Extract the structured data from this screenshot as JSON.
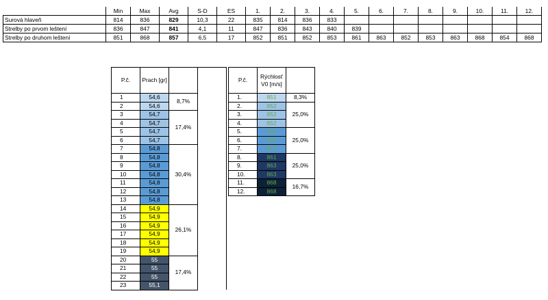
{
  "summary": {
    "headers": [
      "",
      "Min",
      "Max",
      "Avg",
      "S-D",
      "ES",
      "1.",
      "2.",
      "3.",
      "4.",
      "5.",
      "6.",
      "7.",
      "8.",
      "9.",
      "10.",
      "11.",
      "12."
    ],
    "rows": [
      {
        "label": "Surová hlaveň",
        "cells": [
          "814",
          "836",
          "829",
          "10,3",
          "22",
          "835",
          "814",
          "836",
          "833",
          "",
          "",
          "",
          "",
          "",
          "",
          "",
          ""
        ]
      },
      {
        "label": "Strelby po prvom leštení",
        "cells": [
          "836",
          "847",
          "841",
          "4,1",
          "11",
          "847",
          "836",
          "843",
          "840",
          "839",
          "",
          "",
          "",
          "",
          "",
          "",
          ""
        ]
      },
      {
        "label": "Strelby po druhom leštení",
        "cells": [
          "851",
          "868",
          "857",
          "6,5",
          "17",
          "852",
          "851",
          "852",
          "853",
          "861",
          "863",
          "852",
          "853",
          "863",
          "868",
          "854",
          "868"
        ]
      }
    ]
  },
  "prach": {
    "header_num": "P.č.",
    "header_val": "Prach [gr]",
    "rows": [
      {
        "n": "1",
        "v": "54,6",
        "color": "#bdd7ee"
      },
      {
        "n": "2",
        "v": "54,6",
        "color": "#bdd7ee"
      },
      {
        "n": "3",
        "v": "54,7",
        "color": "#9dc3e6"
      },
      {
        "n": "4",
        "v": "54,7",
        "color": "#9dc3e6"
      },
      {
        "n": "5",
        "v": "54,7",
        "color": "#9dc3e6"
      },
      {
        "n": "6",
        "v": "54,7",
        "color": "#9dc3e6"
      },
      {
        "n": "7",
        "v": "54,8",
        "color": "#5b9bd5"
      },
      {
        "n": "8",
        "v": "54,8",
        "color": "#5b9bd5"
      },
      {
        "n": "9",
        "v": "54,8",
        "color": "#5b9bd5"
      },
      {
        "n": "10",
        "v": "54,8",
        "color": "#5b9bd5"
      },
      {
        "n": "11",
        "v": "54,8",
        "color": "#5b9bd5"
      },
      {
        "n": "12",
        "v": "54,8",
        "color": "#5b9bd5"
      },
      {
        "n": "13",
        "v": "54,8",
        "color": "#5b9bd5"
      },
      {
        "n": "14",
        "v": "54,9",
        "color": "#ffff00"
      },
      {
        "n": "15",
        "v": "54,9",
        "color": "#ffff00"
      },
      {
        "n": "16",
        "v": "54,9",
        "color": "#ffff00"
      },
      {
        "n": "17",
        "v": "54,9",
        "color": "#ffff00"
      },
      {
        "n": "18",
        "v": "54,9",
        "color": "#ffff00"
      },
      {
        "n": "19",
        "v": "54,9",
        "color": "#ffff00"
      },
      {
        "n": "20",
        "v": "55",
        "color": "#44546a"
      },
      {
        "n": "21",
        "v": "55",
        "color": "#44546a"
      },
      {
        "n": "22",
        "v": "55",
        "color": "#44546a"
      },
      {
        "n": "23",
        "v": "55,1",
        "color": "#44546a"
      }
    ],
    "percent_groups": [
      {
        "label": "8,7%",
        "span": 2
      },
      {
        "label": "17,4%",
        "span": 4
      },
      {
        "label": "30,4%",
        "span": 7
      },
      {
        "label": "26,1%",
        "span": 6
      },
      {
        "label": "17,4%",
        "span": 4
      }
    ]
  },
  "rychlost": {
    "header_num": "P.č.",
    "header_val": "Rýchlosť V0 [m/s]",
    "rows": [
      {
        "n": "1.",
        "v": "851",
        "color": "#bdd7ee"
      },
      {
        "n": "2.",
        "v": "852",
        "color": "#9dc3e6"
      },
      {
        "n": "3.",
        "v": "852",
        "color": "#9dc3e6"
      },
      {
        "n": "4.",
        "v": "852",
        "color": "#9dc3e6"
      },
      {
        "n": "5.",
        "v": "853",
        "color": "#5b9bd5"
      },
      {
        "n": "6.",
        "v": "853",
        "color": "#5b9bd5"
      },
      {
        "n": "7.",
        "v": "854",
        "color": "#5b9bd5"
      },
      {
        "n": "8.",
        "v": "861",
        "color": "#1f3864"
      },
      {
        "n": "9.",
        "v": "863",
        "color": "#1f3864"
      },
      {
        "n": "10.",
        "v": "863",
        "color": "#1f3864"
      },
      {
        "n": "11.",
        "v": "868",
        "color": "#0d2137"
      },
      {
        "n": "12.",
        "v": "868",
        "color": "#0d2137"
      }
    ],
    "percent_groups": [
      {
        "label": "8,3%",
        "span": 1
      },
      {
        "label": "25,0%",
        "span": 3
      },
      {
        "label": "25,0%",
        "span": 3
      },
      {
        "label": "25,0%",
        "span": 3
      },
      {
        "label": "16,7%",
        "span": 2
      }
    ],
    "value_text_color": "#6aa84f"
  }
}
